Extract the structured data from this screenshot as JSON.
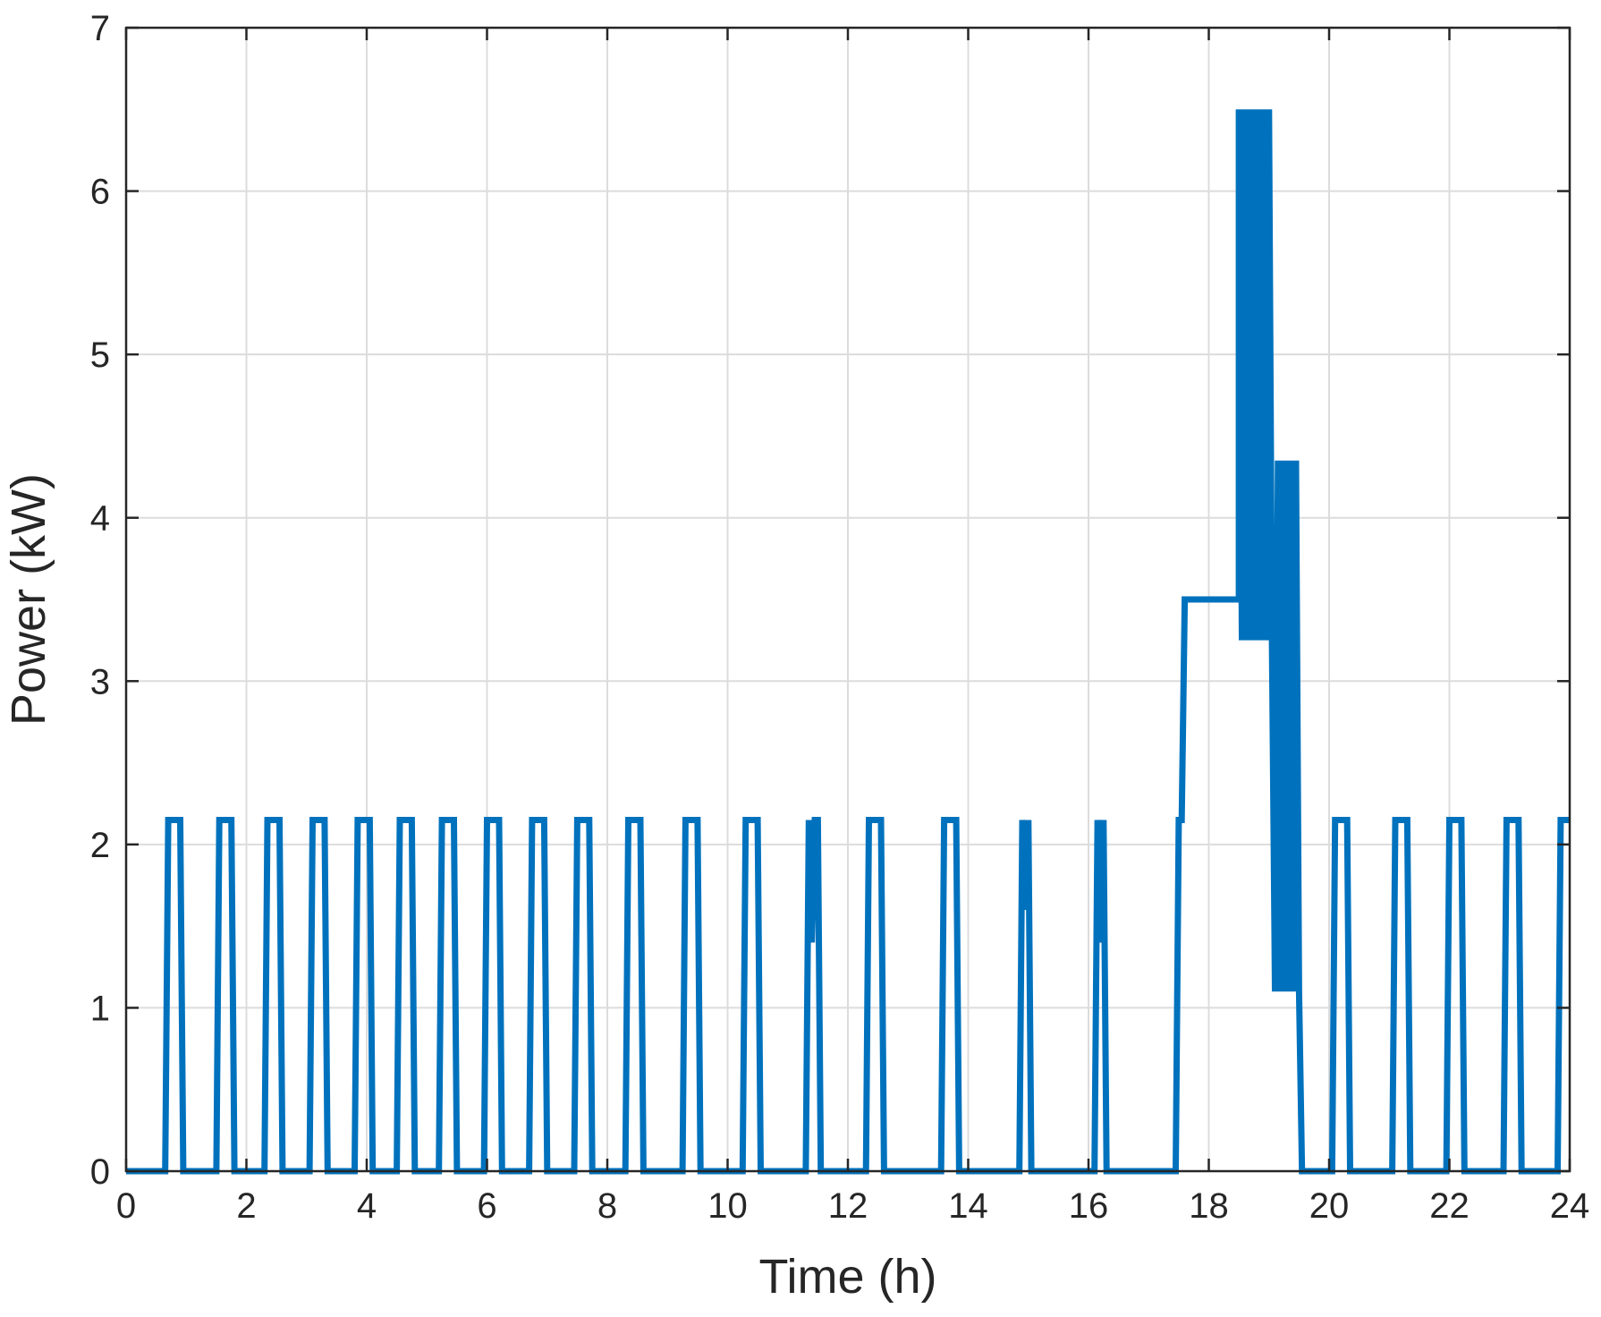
{
  "chart_data": {
    "type": "line",
    "title": "",
    "xlabel": "Time (h)",
    "ylabel": "Power (kW)",
    "xlim": [
      0,
      24
    ],
    "ylim": [
      0,
      7
    ],
    "xticks": [
      0,
      2,
      4,
      6,
      8,
      10,
      12,
      14,
      16,
      18,
      20,
      22,
      24
    ],
    "yticks": [
      0,
      1,
      2,
      3,
      4,
      5,
      6,
      7
    ],
    "grid": true,
    "line_color": "#0072BD",
    "series": [
      {
        "x": [
          0,
          0.65,
          0.7,
          0.9,
          0.95,
          1.5,
          1.55,
          1.75,
          1.8,
          2.3,
          2.35,
          2.55,
          2.6,
          3.05,
          3.1,
          3.3,
          3.35,
          3.8,
          3.85,
          4.05,
          4.1,
          4.5,
          4.55,
          4.75,
          4.8,
          5.2,
          5.25,
          5.45,
          5.5,
          5.95,
          6.0,
          6.2,
          6.25,
          6.7,
          6.75,
          6.95,
          7.0,
          7.45,
          7.5,
          7.7,
          7.75,
          8.3,
          8.35,
          8.55,
          8.6,
          9.25,
          9.3,
          9.5,
          9.55,
          10.25,
          10.3,
          10.5,
          10.55,
          11.3,
          11.35,
          11.4,
          11.45,
          11.5,
          11.55,
          12.3,
          12.35,
          12.55,
          12.6,
          13.55,
          13.6,
          13.8,
          13.85,
          14.85,
          14.9,
          14.95,
          15.0,
          15.05,
          16.1,
          16.15,
          16.2,
          16.25,
          16.3,
          17.45,
          17.5,
          17.55,
          17.6,
          17.65,
          18.5,
          18.5,
          18.55,
          18.6,
          18.65,
          18.7,
          18.75,
          18.8,
          18.85,
          18.9,
          18.95,
          19.0,
          19.05,
          19.1,
          19.15,
          19.2,
          19.25,
          19.3,
          19.35,
          19.4,
          19.45,
          19.5,
          19.55,
          20.05,
          20.1,
          20.3,
          20.35,
          21.05,
          21.1,
          21.3,
          21.35,
          21.95,
          22.0,
          22.2,
          22.25,
          22.9,
          22.95,
          23.15,
          23.2,
          23.8,
          23.85,
          24.0
        ],
        "y": [
          0,
          0,
          2.15,
          2.15,
          0,
          0,
          2.15,
          2.15,
          0,
          0,
          2.15,
          2.15,
          0,
          0,
          2.15,
          2.15,
          0,
          0,
          2.15,
          2.15,
          0,
          0,
          2.15,
          2.15,
          0,
          0,
          2.15,
          2.15,
          0,
          0,
          2.15,
          2.15,
          0,
          0,
          2.15,
          2.15,
          0,
          0,
          2.15,
          2.15,
          0,
          0,
          2.15,
          2.15,
          0,
          0,
          2.15,
          2.15,
          0,
          0,
          2.15,
          2.15,
          0,
          0,
          2.15,
          1.4,
          2.15,
          2.15,
          0,
          0,
          2.15,
          2.15,
          0,
          0,
          2.15,
          2.15,
          0,
          0,
          2.15,
          1.6,
          2.15,
          0,
          0,
          2.15,
          1.4,
          2.15,
          0,
          0,
          2.15,
          2.15,
          3.5,
          3.5,
          3.5,
          6.5,
          3.25,
          6.5,
          3.25,
          6.5,
          3.25,
          6.5,
          3.25,
          6.5,
          3.25,
          6.5,
          3.25,
          1.1,
          4.35,
          1.1,
          4.35,
          1.1,
          4.35,
          1.1,
          4.35,
          1.1,
          0,
          0,
          2.15,
          2.15,
          0,
          0,
          2.15,
          2.15,
          0,
          0,
          2.15,
          2.15,
          0,
          0,
          2.15,
          2.15,
          0,
          0,
          2.15,
          2.15
        ]
      }
    ]
  }
}
